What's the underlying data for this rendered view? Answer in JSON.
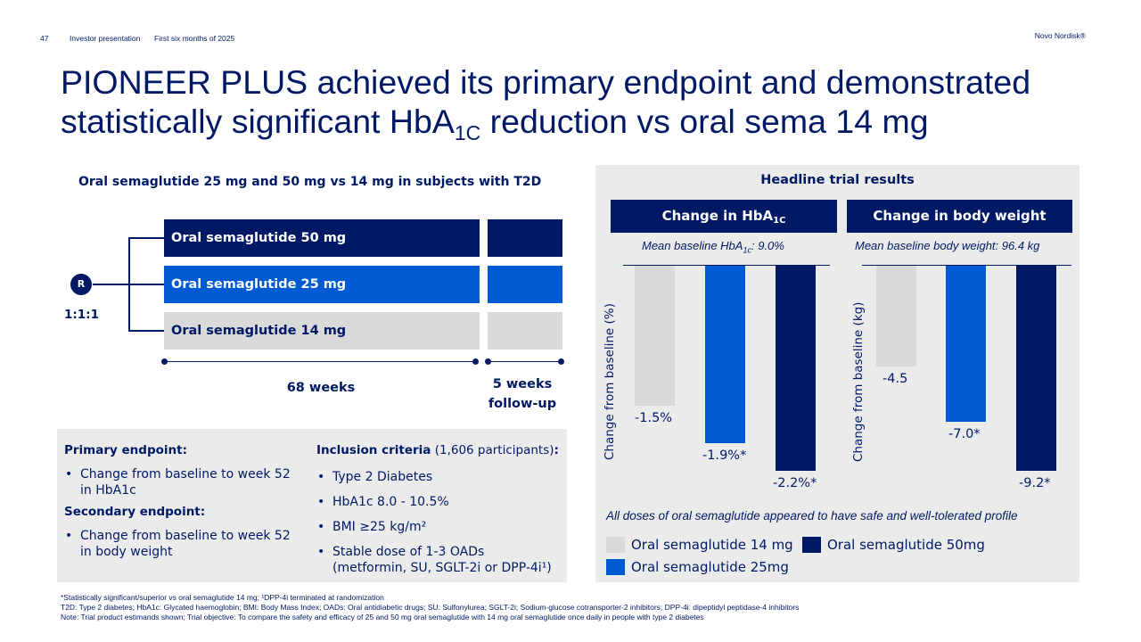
{
  "header": {
    "page_number": "47",
    "presentation": "Investor presentation",
    "period": "First six months of 2025",
    "brand": "Novo Nordisk®"
  },
  "title": {
    "line1": "PIONEER PLUS achieved its primary endpoint and demonstrated",
    "line2_pre": "statistically significant HbA",
    "line2_sub": "1C",
    "line2_post": " reduction vs oral sema 14 mg"
  },
  "design": {
    "title": "Oral semaglutide 25 mg and 50 mg vs 14 mg in subjects with T2D",
    "arms": [
      "Oral semaglutide 50 mg",
      "Oral semaglutide 25 mg",
      "Oral semaglutide 14 mg"
    ],
    "randomization_symbol": "R",
    "ratio": "1:1:1",
    "treatment_duration": "68 weeks",
    "followup_line1": "5 weeks",
    "followup_line2": "follow-up"
  },
  "endpoints": {
    "primary_heading": "Primary endpoint:",
    "primary_items": [
      "Change from baseline to week 52 in HbA1c"
    ],
    "secondary_heading": "Secondary endpoint:",
    "secondary_items": [
      "Change from baseline to week 52 in body weight"
    ],
    "inclusion_heading": "Inclusion criteria",
    "inclusion_count": " (1,606 participants)",
    "inclusion_colon": ":",
    "inclusion_items": [
      "Type 2 Diabetes",
      "HbA1c 8.0 - 10.5%",
      "BMI ≥25 kg/m²",
      "Stable dose of 1-3 OADs (metformin, SU, SGLT-2i or DPP-4i¹)"
    ]
  },
  "results": {
    "title": "Headline trial results",
    "hba1c_head_pre": "Change in HbA",
    "hba1c_head_sub": "1C",
    "weight_head": "Change in body weight",
    "hba1c_baseline_pre": "Mean baseline HbA",
    "hba1c_baseline_sub": "1c",
    "hba1c_baseline_post": ": 9.0%",
    "weight_baseline": "Mean baseline body weight: 96.4 kg",
    "hba1c_ylabel": "Change from baseline (%)",
    "weight_ylabel": "Change from baseline (kg)",
    "safety_note": "All doses of oral semaglutide appeared to have safe and well-tolerated profile",
    "legend": [
      "Oral semaglutide 14 mg",
      "Oral semaglutide 50mg",
      "Oral semaglutide 25mg"
    ]
  },
  "chart_data": [
    {
      "type": "bar",
      "title": "Change in HbA1C",
      "ylabel": "Change from baseline (%)",
      "categories": [
        "Oral semaglutide 14 mg",
        "Oral semaglutide 25mg",
        "Oral semaglutide 50mg"
      ],
      "values": [
        -1.5,
        -1.9,
        -2.2
      ],
      "data_labels": [
        "-1.5%",
        "-1.9%*",
        "-2.2%*"
      ],
      "colors": [
        "#d9d9d9",
        "#005ad2",
        "#001965"
      ]
    },
    {
      "type": "bar",
      "title": "Change in body weight",
      "ylabel": "Change from baseline (kg)",
      "categories": [
        "Oral semaglutide 14 mg",
        "Oral semaglutide 25mg",
        "Oral semaglutide 50mg"
      ],
      "values": [
        -4.5,
        -7.0,
        -9.2
      ],
      "data_labels": [
        "-4.5",
        "-7.0*",
        "-9.2*"
      ],
      "colors": [
        "#d9d9d9",
        "#005ad2",
        "#001965"
      ]
    }
  ],
  "colors": {
    "navy": "#001965",
    "blue": "#005ad2",
    "gray": "#d9d9d9",
    "panel": "#ebebeb"
  },
  "footnotes": [
    "*Statistically significant/superior vs oral semaglutide 14 mg; ¹DPP-4i terminated at randomization",
    "T2D: Type 2 diabetes; HbA1c: Glycated haemoglobin; BMI: Body Mass Index; OADs: Oral antidiabetic drugs; SU: Sulfonylurea; SGLT-2i; Sodium-glucose cotransporter-2 inhibitors; DPP-4i: dipeptidyl peptidase-4 inhibitors",
    "Note: Trial product estimands shown; Trial objective:  To compare the safety and efficacy of 25 and 50 mg oral semaglutide with 14 mg oral semaglutide once daily in people with type 2 diabetes"
  ]
}
